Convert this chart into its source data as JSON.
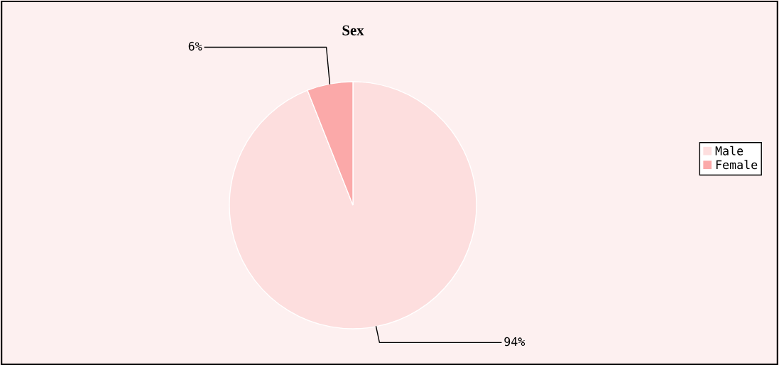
{
  "chart_data": {
    "type": "pie",
    "title": "Sex",
    "categories": [
      "Male",
      "Female"
    ],
    "values": [
      94,
      6
    ],
    "colors": [
      "#fddede",
      "#fba9a9"
    ],
    "value_labels": [
      "94%",
      "6%"
    ],
    "legend": "right"
  }
}
